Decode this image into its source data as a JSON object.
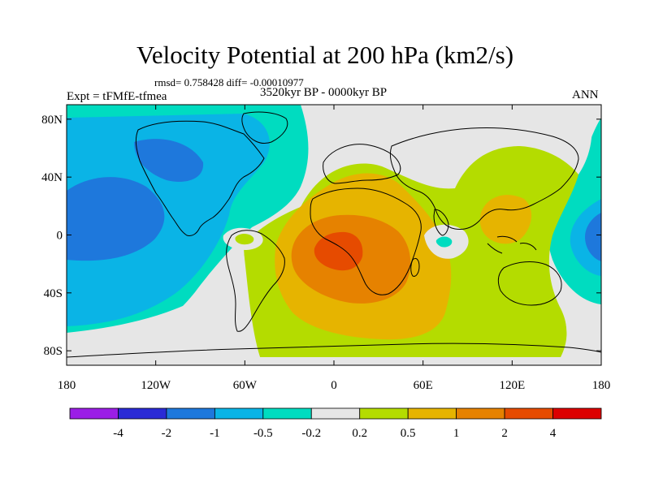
{
  "title": "Velocity Potential at 200 hPa (km2/s)",
  "stats": "rmsd= 0.758428 diff= -0.00010977",
  "experiment": "Expt = tFMfE-tfmea",
  "period": "3520kyr BP - 0000kyr BP",
  "season": "ANN",
  "axes": {
    "lat_ticks": [
      {
        "value": 80,
        "label": "80N"
      },
      {
        "value": 40,
        "label": "40N"
      },
      {
        "value": 0,
        "label": "0"
      },
      {
        "value": -40,
        "label": "40S"
      },
      {
        "value": -80,
        "label": "80S"
      }
    ],
    "lon_ticks": [
      {
        "value": -180,
        "label": "180"
      },
      {
        "value": -120,
        "label": "120W"
      },
      {
        "value": -60,
        "label": "60W"
      },
      {
        "value": 0,
        "label": "0"
      },
      {
        "value": 60,
        "label": "60E"
      },
      {
        "value": 120,
        "label": "120E"
      },
      {
        "value": 180,
        "label": "180"
      }
    ]
  },
  "colorbar": {
    "colors": [
      "#9b1ee6",
      "#2a2ad6",
      "#1e78dc",
      "#0ab4e6",
      "#00dcc0",
      "#e6e6e6",
      "#b4dc00",
      "#e6b400",
      "#e68200",
      "#e64b00",
      "#dc0000"
    ],
    "labels": [
      "-4",
      "-2",
      "-1",
      "-0.5",
      "-0.2",
      "0.2",
      "0.5",
      "1",
      "2",
      "4"
    ]
  },
  "map_colors": {
    "neg_weak": "#00dcc0",
    "neg_mid": "#0ab4e6",
    "neg_strong": "#1e78dc",
    "neutral": "#e6e6e6",
    "pos_weak": "#b4dc00",
    "pos_mid": "#e6b400",
    "pos_strong": "#e68200",
    "pos_max": "#e64b00"
  }
}
